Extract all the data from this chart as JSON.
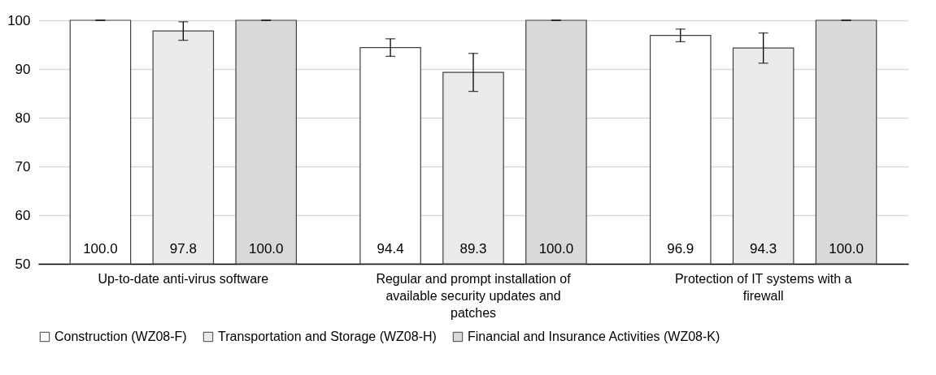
{
  "chart_data": {
    "type": "bar",
    "categories": [
      "Up-to-date anti-virus software",
      "Regular and prompt installation of available security updates and patches",
      "Protection of IT systems with a firewall"
    ],
    "series": [
      {
        "name": "Construction (WZ08-F)",
        "color": "#ffffff",
        "values": [
          100.0,
          94.4,
          96.9
        ],
        "value_labels": [
          "100.0",
          "94.4",
          "96.9"
        ],
        "errors": [
          0,
          1.8,
          1.3
        ]
      },
      {
        "name": "Transportation and Storage (WZ08-H)",
        "color": "#ebebeb",
        "values": [
          97.8,
          89.3,
          94.3
        ],
        "value_labels": [
          "97.8",
          "89.3",
          "94.3"
        ],
        "errors": [
          1.9,
          3.9,
          3.1
        ]
      },
      {
        "name": "Financial and Insurance Activities (WZ08-K)",
        "color": "#d9d9d9",
        "values": [
          100.0,
          100.0,
          100.0
        ],
        "value_labels": [
          "100.0",
          "100.0",
          "100.0"
        ],
        "errors": [
          0,
          0,
          0
        ]
      }
    ],
    "ylim": [
      50,
      100
    ],
    "yticks": [
      50,
      60,
      70,
      80,
      90,
      100
    ],
    "grid": "y",
    "legend": "bottom"
  }
}
